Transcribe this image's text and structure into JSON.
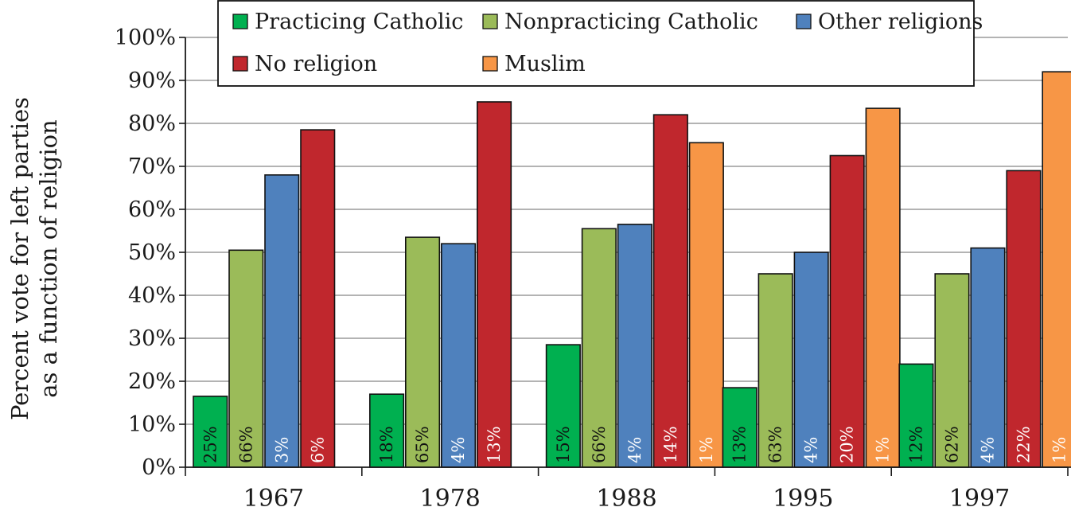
{
  "chart_data": {
    "type": "bar",
    "title": "",
    "ylabel_line1": "Percent vote for left parties",
    "ylabel_line2": "as a function of religion",
    "xlabel": "",
    "ylim": [
      0,
      100
    ],
    "y_ticks": [
      "0%",
      "10%",
      "20%",
      "30%",
      "40%",
      "50%",
      "60%",
      "70%",
      "80%",
      "90%",
      "100%"
    ],
    "grid": true,
    "legend_placement": "top",
    "categories": [
      "1967",
      "1978",
      "1988",
      "1995",
      "1997"
    ],
    "series": [
      {
        "name": "Practicing Catholic",
        "color": "#00b050",
        "values": [
          16.5,
          17,
          28.5,
          18.5,
          24
        ],
        "labels": [
          "25%",
          "18%",
          "15%",
          "13%",
          "12%"
        ]
      },
      {
        "name": "Nonpracticing Catholic",
        "color": "#9bbb59",
        "values": [
          50.5,
          53.5,
          55.5,
          45,
          45
        ],
        "labels": [
          "66%",
          "65%",
          "66%",
          "63%",
          "62%"
        ]
      },
      {
        "name": "Other religions",
        "color": "#4f81bd",
        "values": [
          68,
          52,
          56.5,
          50,
          51
        ],
        "labels": [
          "3%",
          "4%",
          "4%",
          "4%",
          "4%"
        ]
      },
      {
        "name": "No religion",
        "color": "#c0272d",
        "values": [
          78.5,
          85,
          82,
          72.5,
          69
        ],
        "labels": [
          "6%",
          "13%",
          "14%",
          "20%",
          "22%"
        ]
      },
      {
        "name": "Muslim",
        "color": "#f79646",
        "values": [
          null,
          null,
          75.5,
          83.5,
          92
        ],
        "labels": [
          "",
          "",
          "1%",
          "1%",
          "1%"
        ]
      }
    ]
  }
}
